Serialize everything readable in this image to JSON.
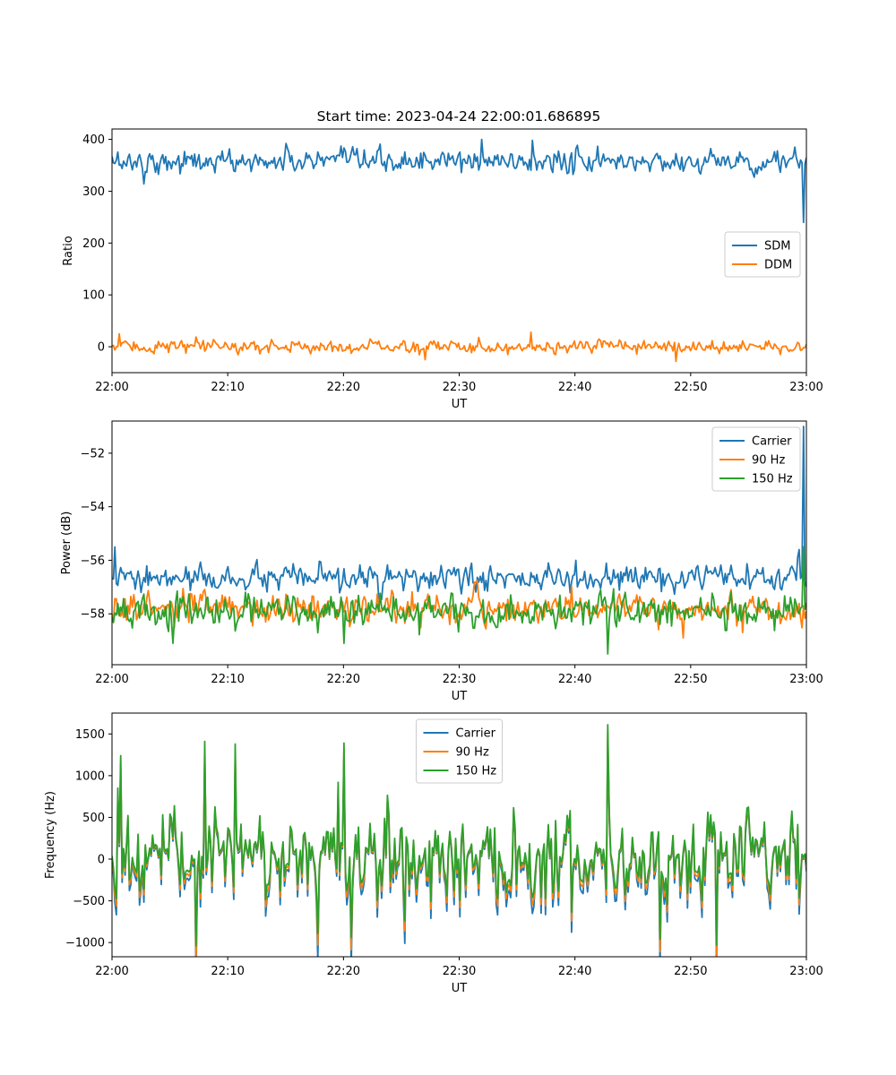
{
  "title": "Start time: 2023-04-24 22:00:01.686895",
  "colors": {
    "blue": "#1f77b4",
    "orange": "#ff7f0e",
    "green": "#2ca02c"
  },
  "chart_data": [
    {
      "type": "line",
      "title": "Start time: 2023-04-24 22:00:01.686895",
      "xlabel": "UT",
      "ylabel": "Ratio",
      "x_range": [
        "22:00",
        "23:00"
      ],
      "x_ticks": [
        "22:00",
        "22:10",
        "22:20",
        "22:30",
        "22:40",
        "22:50",
        "23:00"
      ],
      "ylim": [
        -50,
        420
      ],
      "y_ticks": [
        0,
        100,
        200,
        300,
        400
      ],
      "legend_position": "center-right",
      "series": [
        {
          "name": "SDM",
          "color": "#1f77b4",
          "mean": 357,
          "spread": 14,
          "extremes": [
            [
              1.0,
              358
            ],
            [
              2.8,
              314
            ],
            [
              15,
              392
            ],
            [
              32,
              400
            ],
            [
              36.3,
              398
            ],
            [
              59.0,
              385
            ],
            [
              59.8,
              240
            ],
            [
              60,
              365
            ]
          ]
        },
        {
          "name": "DDM",
          "color": "#ff7f0e",
          "mean": 0,
          "spread": 8,
          "extremes": [
            [
              0.6,
              25
            ],
            [
              27,
              -25
            ],
            [
              36.2,
              28
            ],
            [
              48.7,
              -28
            ],
            [
              60,
              5
            ]
          ]
        }
      ]
    },
    {
      "type": "line",
      "xlabel": "UT",
      "ylabel": "Power (dB)",
      "x_range": [
        "22:00",
        "23:00"
      ],
      "x_ticks": [
        "22:00",
        "22:10",
        "22:20",
        "22:30",
        "22:40",
        "22:50",
        "23:00"
      ],
      "ylim": [
        -59.9,
        -50.8
      ],
      "y_ticks": [
        -58,
        -56,
        -54,
        -52
      ],
      "legend_position": "top-right",
      "series": [
        {
          "name": "Carrier",
          "color": "#1f77b4",
          "mean": -56.7,
          "spread": 0.3,
          "extremes": [
            [
              0.3,
              -55.5
            ],
            [
              2.5,
              -57.2
            ],
            [
              59.4,
              -55.6
            ],
            [
              59.8,
              -51.0
            ],
            [
              60,
              -57.0
            ]
          ]
        },
        {
          "name": "90 Hz",
          "color": "#ff7f0e",
          "mean": -57.8,
          "spread": 0.35,
          "extremes": [
            [
              49.3,
              -58.9
            ],
            [
              54.5,
              -58.7
            ],
            [
              59.8,
              -57.7
            ]
          ]
        },
        {
          "name": "150 Hz",
          "color": "#2ca02c",
          "mean": -57.9,
          "spread": 0.4,
          "extremes": [
            [
              5.3,
              -59.1
            ],
            [
              20.0,
              -59.1
            ],
            [
              42.8,
              -59.5
            ],
            [
              59.8,
              -55.5
            ]
          ]
        }
      ]
    },
    {
      "type": "line",
      "xlabel": "UT",
      "ylabel": "Frequency (Hz)",
      "x_range": [
        "22:00",
        "23:00"
      ],
      "x_ticks": [
        "22:00",
        "22:10",
        "22:20",
        "22:30",
        "22:40",
        "22:50",
        "23:00"
      ],
      "ylim": [
        -1170,
        1750
      ],
      "y_ticks": [
        -1000,
        -500,
        0,
        500,
        1000,
        1500
      ],
      "legend_position": "top-center",
      "series": [
        {
          "name": "Carrier",
          "color": "#1f77b4",
          "offset": -90
        },
        {
          "name": "90 Hz",
          "color": "#ff7f0e",
          "offset": -40
        },
        {
          "name": "150 Hz",
          "color": "#2ca02c",
          "offset": 0,
          "base_mean": 30,
          "spread": 330,
          "extremes": [
            [
              0.5,
              850
            ],
            [
              0.8,
              1240
            ],
            [
              7.3,
              -1040
            ],
            [
              8.0,
              1410
            ],
            [
              10.6,
              1380
            ],
            [
              17.8,
              -890
            ],
            [
              19.6,
              920
            ],
            [
              20.0,
              1390
            ],
            [
              20.7,
              -940
            ],
            [
              42.9,
              1610
            ],
            [
              47.3,
              -960
            ],
            [
              52.2,
              -1030
            ]
          ]
        }
      ]
    }
  ]
}
